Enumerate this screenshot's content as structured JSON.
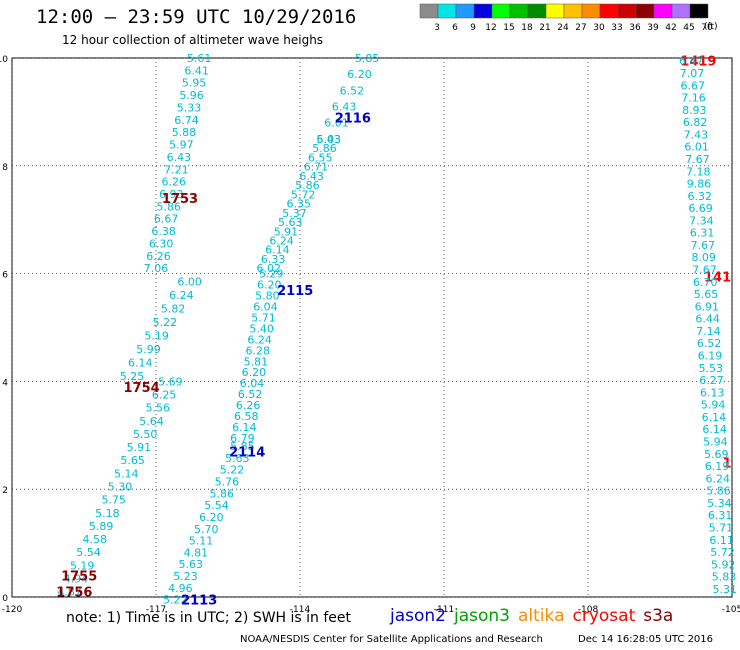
{
  "header": {
    "title": "12:00 – 23:59 UTC 10/29/2016",
    "subtitle": "12 hour collection of altimeter wave heighs"
  },
  "legend": {
    "unit": "(ft)",
    "entries": [
      {
        "label": "3",
        "color": "#8c8c8c"
      },
      {
        "label": "6",
        "color": "#00e5e5"
      },
      {
        "label": "9",
        "color": "#1f9bff"
      },
      {
        "label": "12",
        "color": "#0000e0"
      },
      {
        "label": "15",
        "color": "#00ff00"
      },
      {
        "label": "18",
        "color": "#00c000"
      },
      {
        "label": "21",
        "color": "#008c00"
      },
      {
        "label": "24",
        "color": "#ffff00"
      },
      {
        "label": "27",
        "color": "#ffc000"
      },
      {
        "label": "30",
        "color": "#ff8c00"
      },
      {
        "label": "33",
        "color": "#ff0000"
      },
      {
        "label": "36",
        "color": "#cc0000"
      },
      {
        "label": "39",
        "color": "#8c0000"
      },
      {
        "label": "42",
        "color": "#ff00ff"
      },
      {
        "label": "45",
        "color": "#b070ff"
      },
      {
        "label": "70",
        "color": "#000000"
      }
    ]
  },
  "map": {
    "x_ticks": [
      "-120",
      "-117",
      "-114",
      "-111",
      "-108",
      "-105"
    ],
    "y_ticks": [
      "0",
      "2",
      "4",
      "6",
      "8",
      "10"
    ],
    "x_range": [
      -120,
      -105
    ],
    "y_range": [
      0,
      10
    ],
    "grid": "dotted",
    "wave_color": "#00bcd4",
    "tracks": [
      {
        "label": "1756",
        "label_color": "#8b0000",
        "label_pos": [
          -118.7,
          0.1
        ],
        "start": [
          -118.8,
          0.1
        ],
        "end": [
          -116.7,
          4.0
        ],
        "values": [
          "4.87",
          "4.94",
          "5.19",
          "5.54",
          "4.58",
          "5.89",
          "5.18",
          "5.75",
          "5.30",
          "5.14",
          "5.65",
          "5.91",
          "5.50",
          "5.64",
          "5.56",
          "6.25",
          "5.69"
        ]
      },
      {
        "label": "1755",
        "label_color": "#8b0000",
        "label_pos": [
          -118.6,
          0.4
        ],
        "start": [
          -118.8,
          0.1
        ],
        "end": [
          -118.8,
          0.1
        ],
        "values": []
      },
      {
        "label": "1754",
        "label_color": "#8b0000",
        "label_pos": [
          -117.3,
          3.9
        ],
        "start": [
          -117.5,
          4.1
        ],
        "end": [
          -116.3,
          5.85
        ],
        "values": [
          "5.25",
          "6.14",
          "5.99",
          "5.19",
          "5.22",
          "5.82",
          "6.24",
          "6.00"
        ]
      },
      {
        "label": "1753",
        "label_color": "#8b0000",
        "label_pos": [
          -116.5,
          7.4
        ],
        "start": [
          -117.0,
          6.1
        ],
        "end": [
          -116.1,
          10.0
        ],
        "values": [
          "7.06",
          "6.26",
          "6.30",
          "6.38",
          "6.67",
          "5.86",
          "6.93",
          "6.26",
          "7.21",
          "6.43",
          "5.97",
          "5.88",
          "6.74",
          "5.33",
          "5.96",
          "5.95",
          "6.41",
          "5.61"
        ]
      },
      {
        "label": "2113",
        "label_color": "#0000cd",
        "label_pos": [
          -116.1,
          -0.05
        ],
        "start": [
          -116.6,
          -0.05
        ],
        "end": [
          -115.2,
          2.8
        ],
        "values": [
          "5.22",
          "4.96",
          "5.23",
          "5.63",
          "4.81",
          "5.11",
          "5.70",
          "6.20",
          "5.54",
          "5.86",
          "5.76",
          "5.22",
          "5.63",
          "5.85"
        ]
      },
      {
        "label": "2114",
        "label_color": "#0000cd",
        "label_pos": [
          -115.1,
          2.7
        ],
        "start": [
          -115.2,
          2.95
        ],
        "end": [
          -114.6,
          6.0
        ],
        "values": [
          "6.79",
          "6.14",
          "6.58",
          "6.26",
          "6.52",
          "6.04",
          "6.20",
          "5.81",
          "6.28",
          "6.24",
          "5.40",
          "5.71",
          "6.04",
          "5.80",
          "6.20",
          "5.29"
        ]
      },
      {
        "label": "2115",
        "label_color": "#0000cd",
        "label_pos": [
          -114.1,
          5.7
        ],
        "start": [
          -114.65,
          6.1
        ],
        "end": [
          -113.4,
          8.5
        ],
        "values": [
          "6.02",
          "6.33",
          "6.14",
          "6.24",
          "5.91",
          "5.63",
          "5.37",
          "6.35",
          "5.72",
          "5.86",
          "6.43",
          "6.71",
          "6.55",
          "5.86",
          "5.43"
        ]
      },
      {
        "label": "2116",
        "label_color": "#0000cd",
        "label_pos": [
          -112.9,
          8.9
        ],
        "start": [
          -113.4,
          8.5
        ],
        "end": [
          -112.6,
          10.0
        ],
        "values": [
          "6.03",
          "6.01",
          "6.43",
          "6.52",
          "6.20",
          "5.85"
        ]
      },
      {
        "label": "1419",
        "label_color": "#ff0000",
        "label_pos": [
          -105.7,
          9.95
        ],
        "start": [
          -105.8,
          9.95
        ],
        "end": [
          -105.8,
          9.95
        ],
        "values": []
      },
      {
        "label": "141",
        "label_color": "#ff0000",
        "label_pos": [
          -105.3,
          5.95
        ],
        "start": [
          -105.8,
          5.95
        ],
        "end": [
          -105.8,
          5.95
        ],
        "values": []
      },
      {
        "label": "1",
        "label_color": "#ff0000",
        "label_pos": [
          -105.1,
          2.5
        ],
        "start": [
          -105.8,
          2.5
        ],
        "end": [
          -105.8,
          2.5
        ],
        "values": []
      },
      {
        "label": "",
        "label_color": "#ff0000",
        "label_pos": [
          -105.8,
          10
        ],
        "start": [
          -105.85,
          9.95
        ],
        "end": [
          -105.15,
          0.15
        ],
        "values": [
          "6.47",
          "7.07",
          "6.67",
          "7.16",
          "8.93",
          "6.82",
          "7.43",
          "6.01",
          "7.67",
          "7.18",
          "9.86",
          "6.32",
          "6.69",
          "7.34",
          "6.31",
          "7.67",
          "8.09",
          "7.67",
          "6.70",
          "5.65",
          "6.91",
          "6.44",
          "7.14",
          "6.52",
          "6.19",
          "5.53",
          "6.27",
          "6.13",
          "5.94",
          "6.14",
          "6.14",
          "5.94",
          "5.69",
          "6.19",
          "6.24",
          "5.86",
          "5.34",
          "6.31",
          "5.71",
          "6.11",
          "5.72",
          "5.92",
          "5.83",
          "5.31"
        ]
      }
    ]
  },
  "note": {
    "text": "note:  1) Time is in UTC;  2) SWH is in feet"
  },
  "satellites": [
    {
      "name": "jason2",
      "color": "#0000cd"
    },
    {
      "name": "jason3",
      "color": "#00a000"
    },
    {
      "name": "altika",
      "color": "#ff8c00"
    },
    {
      "name": "cryosat",
      "color": "#ff0000"
    },
    {
      "name": "s3a",
      "color": "#8b0000"
    }
  ],
  "footer": {
    "credit": "NOAA/NESDIS Center for Satellite Applications and Research",
    "timestamp": "Dec 14 16:28:05 UTC 2016"
  }
}
